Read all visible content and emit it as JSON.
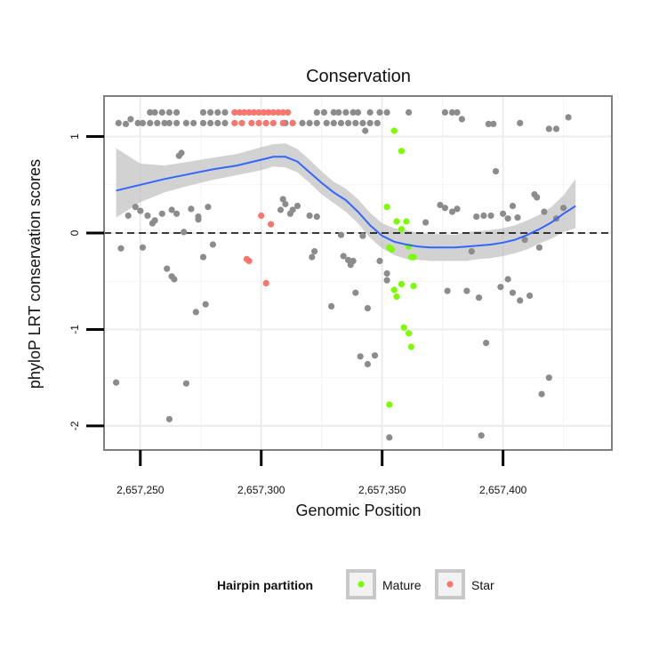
{
  "chart_data": {
    "type": "scatter",
    "title": "Conservation",
    "xlabel": "Genomic Position",
    "ylabel": "phyloP LRT conservation scores",
    "xlim": [
      2657235,
      2657445
    ],
    "ylim": [
      -2.25,
      1.42
    ],
    "x_ticks": [
      {
        "value": 2657250,
        "label": "2,657,250"
      },
      {
        "value": 2657300,
        "label": "2,657,300"
      },
      {
        "value": 2657350,
        "label": "2,657,350"
      },
      {
        "value": 2657400,
        "label": "2,657,400"
      }
    ],
    "y_ticks": [
      {
        "value": -2,
        "label": "-2"
      },
      {
        "value": -1,
        "label": "-1"
      },
      {
        "value": 0,
        "label": "0"
      },
      {
        "value": 1,
        "label": "1"
      }
    ],
    "reference_line": {
      "y": 0,
      "style": "dashed"
    },
    "grid": true,
    "legend": {
      "title": "Hairpin partition",
      "position": "bottom",
      "entries": [
        {
          "name": "Mature",
          "color": "#7cfc00"
        },
        {
          "name": "Star",
          "color": "#f8766d"
        }
      ]
    },
    "colors": {
      "other": "#8c8c8c",
      "mature": "#7cfc00",
      "star": "#f8766d",
      "smooth": "#3366ff",
      "ribbon": "#bfbfbf"
    },
    "series": [
      {
        "name": "",
        "color": "#8c8c8c",
        "points": [
          [
            2657241,
            1.14
          ],
          [
            2657244,
            1.13
          ],
          [
            2657246,
            1.18
          ],
          [
            2657249,
            1.14
          ],
          [
            2657251,
            1.14
          ],
          [
            2657254,
            1.14
          ],
          [
            2657257,
            1.14
          ],
          [
            2657260,
            1.14
          ],
          [
            2657262,
            1.14
          ],
          [
            2657265,
            1.14
          ],
          [
            2657269,
            1.14
          ],
          [
            2657272,
            1.14
          ],
          [
            2657276,
            1.14
          ],
          [
            2657279,
            1.14
          ],
          [
            2657282,
            1.14
          ],
          [
            2657285,
            1.14
          ],
          [
            2657254,
            1.25
          ],
          [
            2657256,
            1.25
          ],
          [
            2657259,
            1.25
          ],
          [
            2657262,
            1.25
          ],
          [
            2657265,
            1.25
          ],
          [
            2657276,
            1.25
          ],
          [
            2657279,
            1.25
          ],
          [
            2657282,
            1.25
          ],
          [
            2657285,
            1.25
          ],
          [
            2657310,
            1.14
          ],
          [
            2657313,
            1.14
          ],
          [
            2657317,
            1.14
          ],
          [
            2657320,
            1.14
          ],
          [
            2657323,
            1.14
          ],
          [
            2657327,
            1.14
          ],
          [
            2657330,
            1.14
          ],
          [
            2657333,
            1.14
          ],
          [
            2657336,
            1.14
          ],
          [
            2657339,
            1.14
          ],
          [
            2657342,
            1.14
          ],
          [
            2657345,
            1.14
          ],
          [
            2657348,
            1.14
          ],
          [
            2657323,
            1.25
          ],
          [
            2657326,
            1.25
          ],
          [
            2657330,
            1.25
          ],
          [
            2657332,
            1.25
          ],
          [
            2657335,
            1.25
          ],
          [
            2657338,
            1.25
          ],
          [
            2657340,
            1.25
          ],
          [
            2657345,
            1.25
          ],
          [
            2657349,
            1.25
          ],
          [
            2657352,
            1.25
          ],
          [
            2657361,
            1.25
          ],
          [
            2657343,
            1.06
          ],
          [
            2657376,
            1.25
          ],
          [
            2657379,
            1.25
          ],
          [
            2657381,
            1.25
          ],
          [
            2657383,
            1.18
          ],
          [
            2657394,
            1.13
          ],
          [
            2657396,
            1.13
          ],
          [
            2657407,
            1.14
          ],
          [
            2657419,
            1.08
          ],
          [
            2657422,
            1.08
          ],
          [
            2657427,
            1.2
          ],
          [
            2657240,
            -1.55
          ],
          [
            2657242,
            -0.16
          ],
          [
            2657245,
            0.18
          ],
          [
            2657248,
            0.27
          ],
          [
            2657250,
            0.23
          ],
          [
            2657251,
            -0.15
          ],
          [
            2657253,
            0.18
          ],
          [
            2657255,
            0.1
          ],
          [
            2657256,
            0.13
          ],
          [
            2657259,
            0.2
          ],
          [
            2657261,
            -0.37
          ],
          [
            2657263,
            0.24
          ],
          [
            2657262,
            -1.93
          ],
          [
            2657263,
            -0.45
          ],
          [
            2657264,
            -0.48
          ],
          [
            2657265,
            0.2
          ],
          [
            2657266,
            0.8
          ],
          [
            2657267,
            0.83
          ],
          [
            2657268,
            0.01
          ],
          [
            2657269,
            -1.56
          ],
          [
            2657271,
            0.25
          ],
          [
            2657273,
            -0.82
          ],
          [
            2657274,
            0.14
          ],
          [
            2657274,
            0.17
          ],
          [
            2657276,
            -0.25
          ],
          [
            2657277,
            -0.74
          ],
          [
            2657278,
            0.27
          ],
          [
            2657280,
            -0.12
          ],
          [
            2657308,
            0.24
          ],
          [
            2657309,
            0.35
          ],
          [
            2657310,
            0.3
          ],
          [
            2657312,
            0.2
          ],
          [
            2657313,
            0.24
          ],
          [
            2657315,
            0.28
          ],
          [
            2657320,
            0.18
          ],
          [
            2657321,
            -0.25
          ],
          [
            2657323,
            0.17
          ],
          [
            2657322,
            -0.19
          ],
          [
            2657329,
            -0.76
          ],
          [
            2657333,
            -0.02
          ],
          [
            2657334,
            -0.24
          ],
          [
            2657336,
            -0.28
          ],
          [
            2657337,
            -0.33
          ],
          [
            2657338,
            -0.29
          ],
          [
            2657339,
            -0.62
          ],
          [
            2657341,
            -1.28
          ],
          [
            2657342,
            -0.03
          ],
          [
            2657344,
            -0.78
          ],
          [
            2657344,
            -1.36
          ],
          [
            2657347,
            -1.27
          ],
          [
            2657349,
            -0.29
          ],
          [
            2657352,
            -0.42
          ],
          [
            2657352,
            -0.49
          ],
          [
            2657353,
            -2.12
          ],
          [
            2657368,
            0.11
          ],
          [
            2657374,
            0.29
          ],
          [
            2657376,
            0.26
          ],
          [
            2657377,
            -0.6
          ],
          [
            2657379,
            0.22
          ],
          [
            2657381,
            0.25
          ],
          [
            2657385,
            -0.6
          ],
          [
            2657387,
            -0.19
          ],
          [
            2657389,
            0.17
          ],
          [
            2657390,
            -0.67
          ],
          [
            2657391,
            -2.1
          ],
          [
            2657392,
            0.18
          ],
          [
            2657393,
            -1.14
          ],
          [
            2657395,
            0.18
          ],
          [
            2657397,
            0.64
          ],
          [
            2657399,
            -0.56
          ],
          [
            2657400,
            0.2
          ],
          [
            2657402,
            -0.48
          ],
          [
            2657402,
            0.15
          ],
          [
            2657404,
            -0.62
          ],
          [
            2657404,
            0.28
          ],
          [
            2657406,
            0.16
          ],
          [
            2657407,
            -0.7
          ],
          [
            2657409,
            -0.07
          ],
          [
            2657411,
            -0.65
          ],
          [
            2657413,
            0.4
          ],
          [
            2657414,
            0.37
          ],
          [
            2657415,
            -0.15
          ],
          [
            2657416,
            -1.67
          ],
          [
            2657417,
            0.22
          ],
          [
            2657419,
            -1.5
          ],
          [
            2657422,
            0.15
          ],
          [
            2657425,
            0.26
          ]
        ]
      },
      {
        "name": "Mature",
        "color": "#7cfc00",
        "points": [
          [
            2657355,
            1.06
          ],
          [
            2657358,
            0.85
          ],
          [
            2657352,
            0.27
          ],
          [
            2657353,
            -0.15
          ],
          [
            2657354,
            -0.17
          ],
          [
            2657356,
            0.12
          ],
          [
            2657358,
            0.04
          ],
          [
            2657360,
            0.12
          ],
          [
            2657361,
            -0.14
          ],
          [
            2657362,
            -0.25
          ],
          [
            2657363,
            -0.25
          ],
          [
            2657355,
            -0.59
          ],
          [
            2657356,
            -0.66
          ],
          [
            2657358,
            -0.53
          ],
          [
            2657363,
            -0.55
          ],
          [
            2657359,
            -0.98
          ],
          [
            2657361,
            -1.04
          ],
          [
            2657362,
            -1.18
          ],
          [
            2657353,
            -1.78
          ]
        ]
      },
      {
        "name": "Star",
        "color": "#f8766d",
        "points": [
          [
            2657289,
            1.25
          ],
          [
            2657291,
            1.25
          ],
          [
            2657293,
            1.25
          ],
          [
            2657295,
            1.25
          ],
          [
            2657297,
            1.25
          ],
          [
            2657299,
            1.25
          ],
          [
            2657301,
            1.25
          ],
          [
            2657303,
            1.25
          ],
          [
            2657305,
            1.25
          ],
          [
            2657307,
            1.25
          ],
          [
            2657309,
            1.25
          ],
          [
            2657311,
            1.25
          ],
          [
            2657289,
            1.14
          ],
          [
            2657292,
            1.14
          ],
          [
            2657296,
            1.14
          ],
          [
            2657299,
            1.14
          ],
          [
            2657302,
            1.14
          ],
          [
            2657305,
            1.14
          ],
          [
            2657309,
            1.14
          ],
          [
            2657313,
            1.14
          ],
          [
            2657300,
            0.18
          ],
          [
            2657304,
            0.09
          ],
          [
            2657294,
            -0.27
          ],
          [
            2657295,
            -0.29
          ],
          [
            2657302,
            -0.52
          ]
        ]
      }
    ],
    "smooth": {
      "x": [
        2657240,
        2657250,
        2657260,
        2657270,
        2657280,
        2657290,
        2657300,
        2657305,
        2657310,
        2657315,
        2657320,
        2657325,
        2657330,
        2657335,
        2657340,
        2657345,
        2657350,
        2657355,
        2657360,
        2657365,
        2657370,
        2657375,
        2657380,
        2657385,
        2657390,
        2657395,
        2657400,
        2657405,
        2657410,
        2657415,
        2657420,
        2657425,
        2657430
      ],
      "y": [
        0.44,
        0.5,
        0.56,
        0.61,
        0.66,
        0.7,
        0.76,
        0.79,
        0.79,
        0.74,
        0.63,
        0.52,
        0.42,
        0.34,
        0.22,
        0.08,
        -0.03,
        -0.09,
        -0.12,
        -0.14,
        -0.15,
        -0.15,
        -0.15,
        -0.14,
        -0.13,
        -0.12,
        -0.1,
        -0.07,
        -0.02,
        0.04,
        0.11,
        0.2,
        0.28
      ],
      "lower": [
        0.16,
        0.32,
        0.42,
        0.49,
        0.55,
        0.6,
        0.65,
        0.69,
        0.68,
        0.63,
        0.52,
        0.4,
        0.31,
        0.22,
        0.1,
        -0.05,
        -0.16,
        -0.23,
        -0.27,
        -0.28,
        -0.29,
        -0.29,
        -0.29,
        -0.29,
        -0.27,
        -0.26,
        -0.24,
        -0.21,
        -0.17,
        -0.11,
        -0.06,
        0.01,
        0.05
      ],
      "upper": [
        0.88,
        0.72,
        0.7,
        0.74,
        0.78,
        0.82,
        0.89,
        0.92,
        0.93,
        0.87,
        0.76,
        0.64,
        0.53,
        0.46,
        0.35,
        0.21,
        0.1,
        0.05,
        0.03,
        0.0,
        -0.01,
        -0.01,
        -0.02,
        0.01,
        0.02,
        0.03,
        0.05,
        0.08,
        0.13,
        0.19,
        0.27,
        0.39,
        0.56
      ]
    }
  }
}
